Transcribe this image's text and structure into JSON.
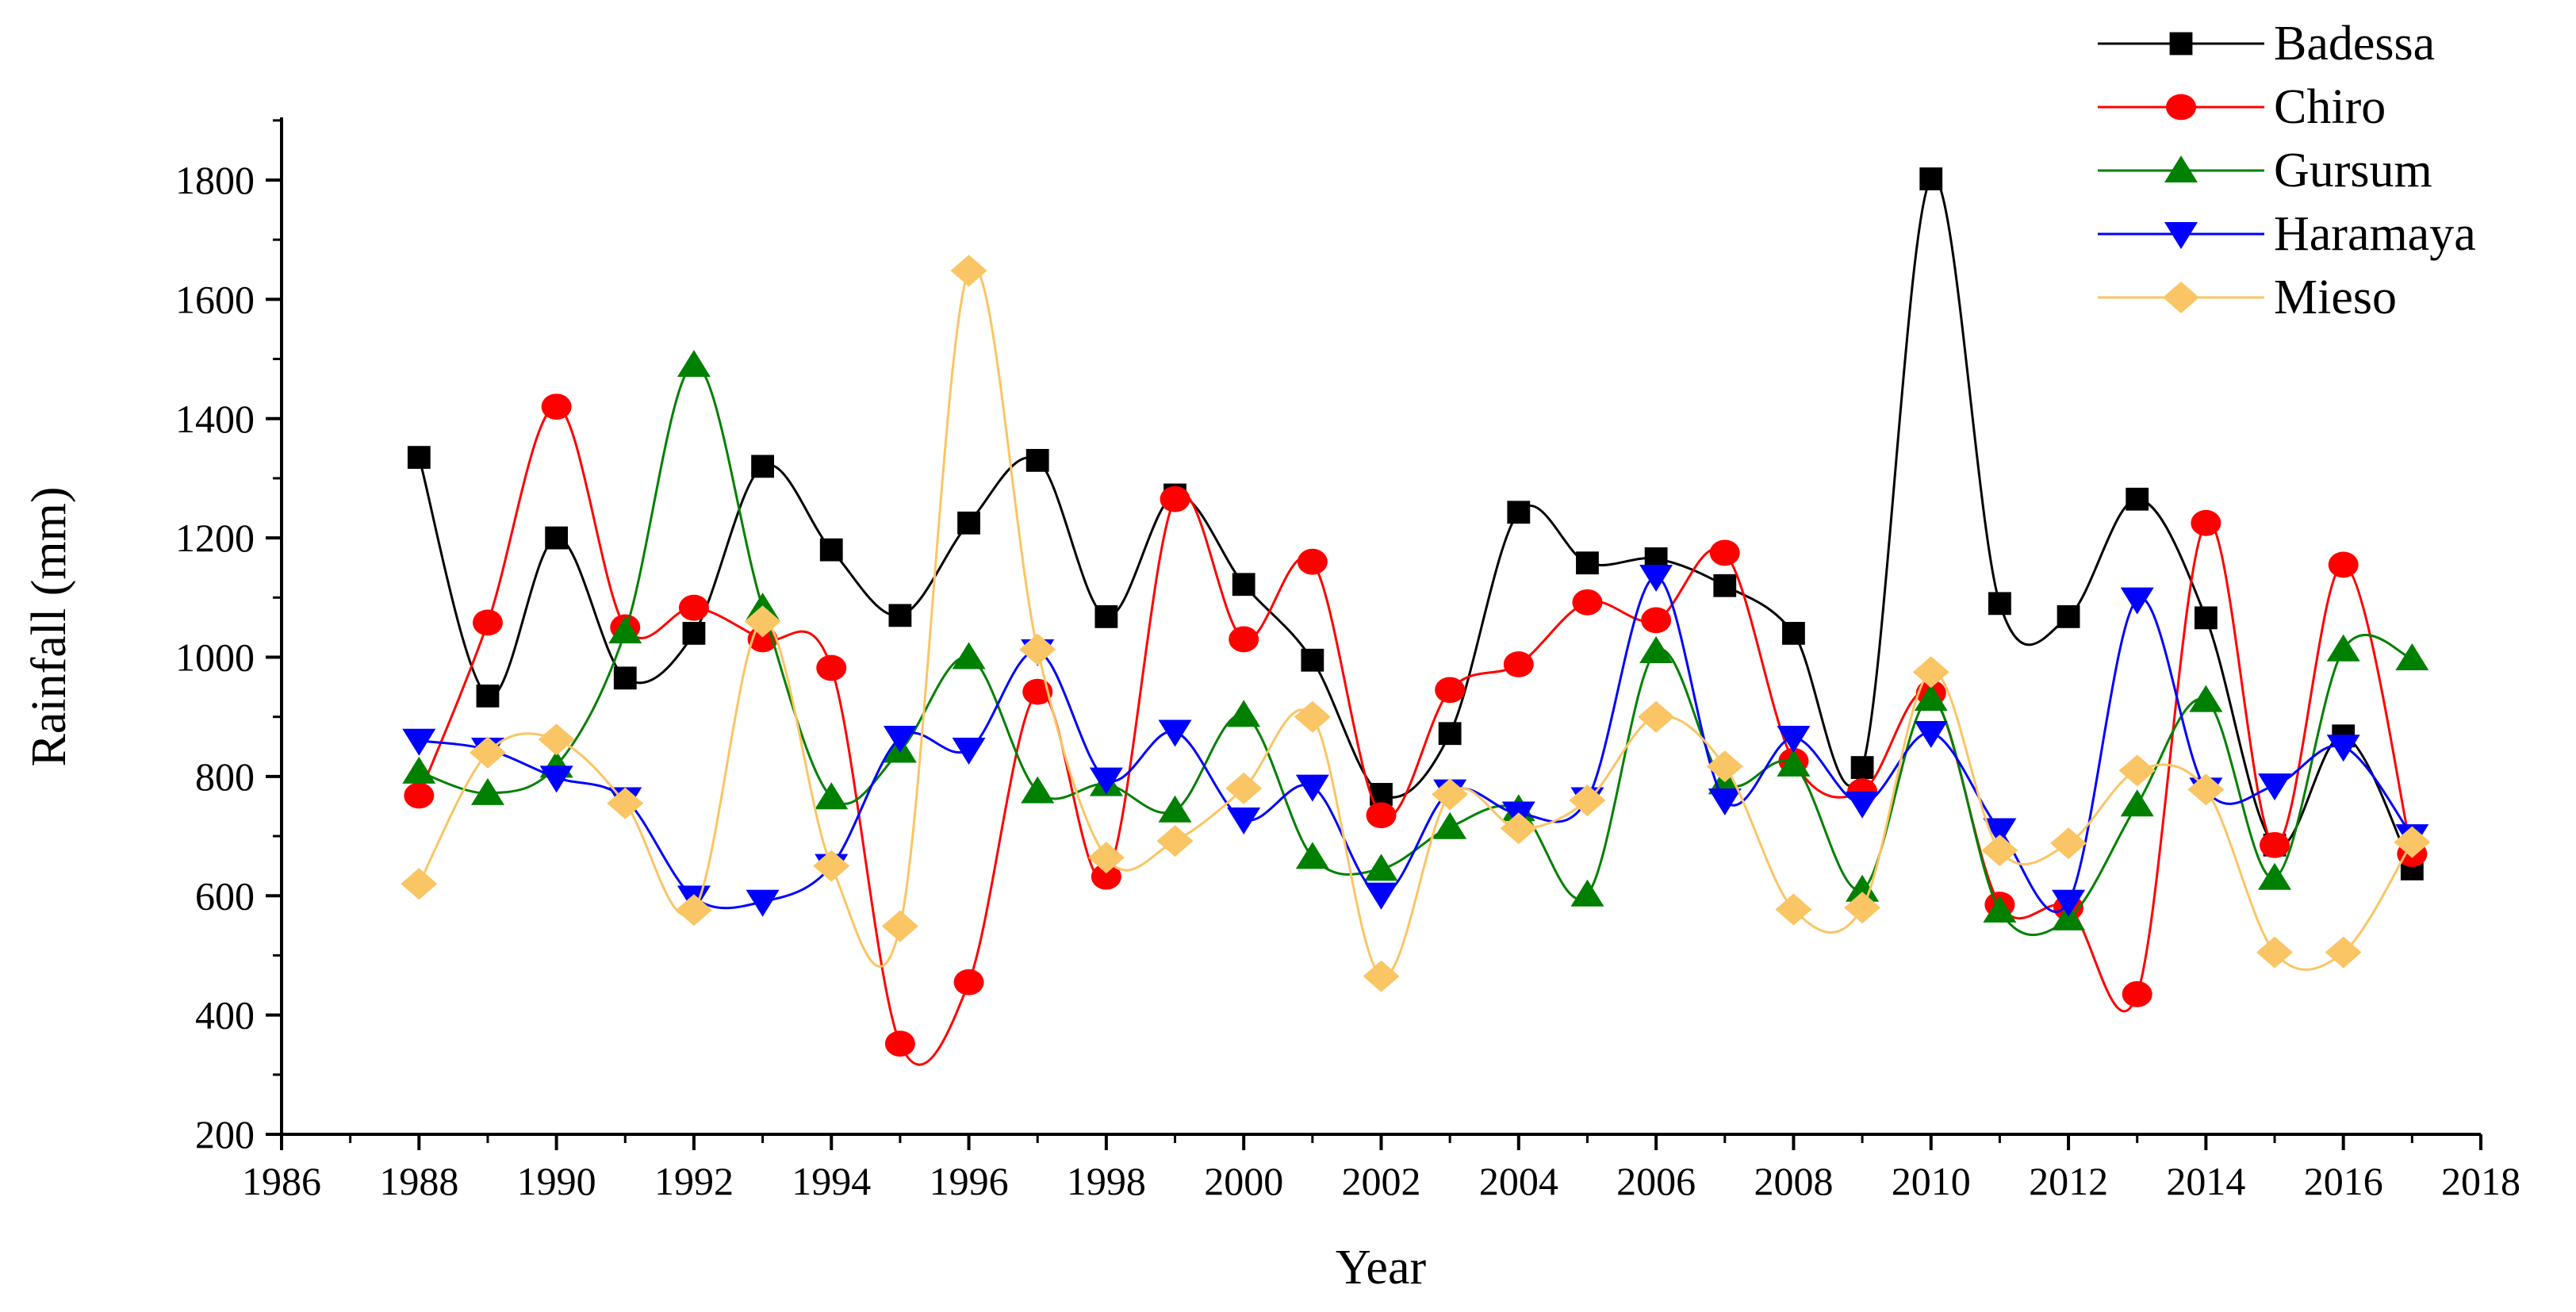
{
  "chart_data": {
    "type": "line",
    "title": "",
    "xlabel": "Year",
    "ylabel": "Rainfall (mm)",
    "xlim": [
      1986,
      2018
    ],
    "ylim": [
      200,
      1900
    ],
    "xticks": [
      1986,
      1988,
      1990,
      1992,
      1994,
      1996,
      1998,
      2000,
      2002,
      2004,
      2006,
      2008,
      2010,
      2012,
      2014,
      2016,
      2018
    ],
    "yticks": [
      200,
      400,
      600,
      800,
      1000,
      1200,
      1400,
      1600,
      1800
    ],
    "x": [
      1988,
      1989,
      1990,
      1991,
      1992,
      1993,
      1994,
      1995,
      1996,
      1997,
      1998,
      1999,
      2000,
      2001,
      2002,
      2003,
      2004,
      2005,
      2006,
      2007,
      2008,
      2009,
      2010,
      2011,
      2012,
      2013,
      2014,
      2015,
      2016,
      2017
    ],
    "legend_position": "top-right",
    "series": [
      {
        "name": "Badessa",
        "color": "#000000",
        "marker": "square",
        "values": [
          1335,
          935,
          1200,
          965,
          1040,
          1320,
          1180,
          1070,
          1225,
          1330,
          1068,
          1272,
          1122,
          995,
          770,
          872,
          1243,
          1158,
          1165,
          1120,
          1040,
          815,
          1802,
          1090,
          1068,
          1265,
          1066,
          685,
          868,
          645
        ]
      },
      {
        "name": "Chiro",
        "color": "#ff0000",
        "marker": "circle",
        "values": [
          768,
          1058,
          1420,
          1050,
          1083,
          1030,
          982,
          352,
          455,
          942,
          632,
          1265,
          1030,
          1160,
          735,
          945,
          988,
          1092,
          1062,
          1175,
          826,
          775,
          940,
          585,
          580,
          435,
          1225,
          685,
          1155,
          670
        ]
      },
      {
        "name": "Gursum",
        "color": "#008000",
        "marker": "triangle-up",
        "values": [
          808,
          772,
          818,
          1043,
          1490,
          1083,
          765,
          843,
          1000,
          775,
          787,
          743,
          903,
          665,
          645,
          715,
          745,
          602,
          1010,
          790,
          820,
          610,
          930,
          575,
          562,
          753,
          928,
          630,
          1013,
          998
        ]
      },
      {
        "name": "Haramaya",
        "color": "#0000ff",
        "marker": "triangle-down",
        "values": [
          860,
          845,
          798,
          762,
          597,
          590,
          650,
          865,
          845,
          1010,
          795,
          875,
          728,
          783,
          602,
          775,
          738,
          762,
          1135,
          760,
          865,
          755,
          873,
          710,
          590,
          1097,
          778,
          785,
          850,
          700
        ]
      },
      {
        "name": "Mieso",
        "color": "#fac564",
        "marker": "diamond",
        "values": [
          620,
          840,
          862,
          755,
          576,
          1060,
          650,
          549,
          1648,
          1013,
          664,
          692,
          780,
          900,
          465,
          770,
          713,
          760,
          900,
          817,
          577,
          580,
          975,
          676,
          688,
          810,
          778,
          505,
          505,
          690
        ]
      }
    ]
  }
}
